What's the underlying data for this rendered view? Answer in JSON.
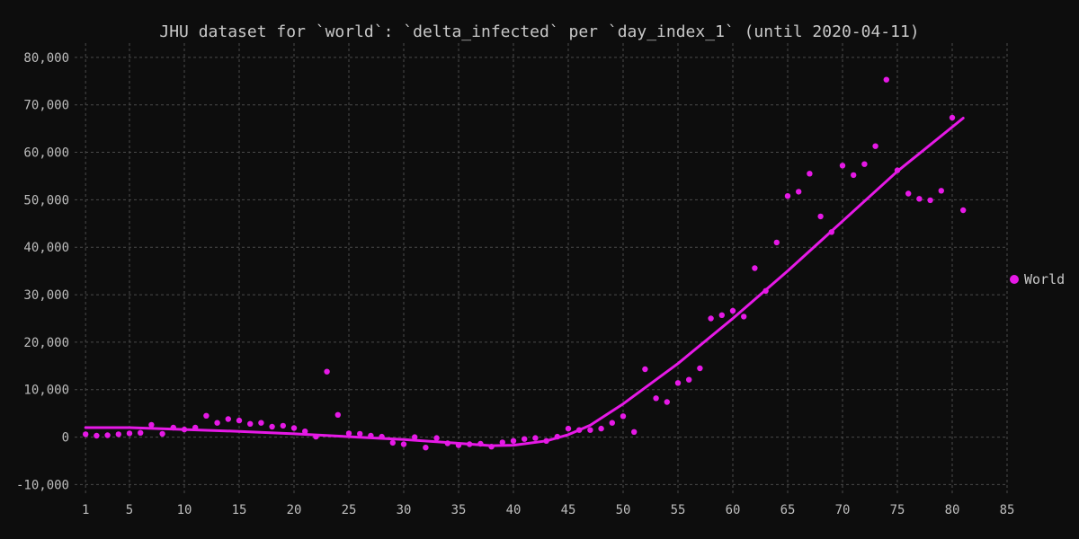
{
  "chart_data": {
    "type": "scatter",
    "title": "JHU dataset for `world`: `delta_infected` per `day_index_1` (until 2020-04-11)",
    "xlabel": "",
    "ylabel": "",
    "xlim": [
      0,
      85
    ],
    "ylim": [
      -12000,
      83000
    ],
    "x_ticks": [
      1,
      5,
      10,
      15,
      20,
      25,
      30,
      35,
      40,
      45,
      50,
      55,
      60,
      65,
      70,
      75,
      80,
      85
    ],
    "y_ticks": [
      -10000,
      0,
      10000,
      20000,
      30000,
      40000,
      50000,
      60000,
      70000,
      80000
    ],
    "y_tick_labels": [
      "-10,000",
      "0",
      "10,000",
      "20,000",
      "30,000",
      "40,000",
      "50,000",
      "60,000",
      "70,000",
      "80,000"
    ],
    "grid": true,
    "legend_position": "right",
    "color": "#e619e6",
    "series": [
      {
        "name": "World",
        "points": [
          [
            1,
            600
          ],
          [
            2,
            300
          ],
          [
            3,
            400
          ],
          [
            4,
            600
          ],
          [
            5,
            800
          ],
          [
            6,
            900
          ],
          [
            7,
            2600
          ],
          [
            8,
            700
          ],
          [
            9,
            2000
          ],
          [
            10,
            1600
          ],
          [
            11,
            2000
          ],
          [
            12,
            4500
          ],
          [
            13,
            3000
          ],
          [
            14,
            3800
          ],
          [
            15,
            3500
          ],
          [
            16,
            2800
          ],
          [
            17,
            3000
          ],
          [
            18,
            2200
          ],
          [
            19,
            2400
          ],
          [
            20,
            1900
          ],
          [
            21,
            1200
          ],
          [
            22,
            100
          ],
          [
            23,
            13800
          ],
          [
            24,
            4700
          ],
          [
            25,
            800
          ],
          [
            26,
            700
          ],
          [
            27,
            300
          ],
          [
            28,
            100
          ],
          [
            29,
            -1200
          ],
          [
            30,
            -1500
          ],
          [
            31,
            0
          ],
          [
            32,
            -2200
          ],
          [
            33,
            -200
          ],
          [
            34,
            -1300
          ],
          [
            35,
            -1700
          ],
          [
            36,
            -1500
          ],
          [
            37,
            -1400
          ],
          [
            38,
            -2000
          ],
          [
            39,
            -1100
          ],
          [
            40,
            -800
          ],
          [
            41,
            -400
          ],
          [
            42,
            -200
          ],
          [
            43,
            -800
          ],
          [
            44,
            100
          ],
          [
            45,
            1800
          ],
          [
            46,
            1500
          ],
          [
            47,
            1500
          ],
          [
            48,
            1800
          ],
          [
            49,
            3000
          ],
          [
            50,
            4400
          ],
          [
            51,
            1100
          ],
          [
            52,
            14300
          ],
          [
            53,
            8200
          ],
          [
            54,
            7400
          ],
          [
            55,
            11400
          ],
          [
            56,
            12100
          ],
          [
            57,
            14500
          ],
          [
            58,
            25000
          ],
          [
            59,
            25700
          ],
          [
            60,
            26600
          ],
          [
            61,
            25400
          ],
          [
            62,
            35600
          ],
          [
            63,
            30800
          ],
          [
            64,
            41000
          ],
          [
            65,
            50800
          ],
          [
            66,
            51700
          ],
          [
            67,
            55500
          ],
          [
            68,
            46500
          ],
          [
            69,
            43200
          ],
          [
            70,
            57200
          ],
          [
            71,
            55200
          ],
          [
            72,
            57500
          ],
          [
            73,
            61300
          ],
          [
            74,
            75300
          ],
          [
            75,
            56200
          ],
          [
            76,
            51300
          ],
          [
            77,
            50200
          ],
          [
            78,
            49900
          ],
          [
            79,
            51900
          ],
          [
            80,
            67300
          ],
          [
            81,
            47800
          ]
        ],
        "trend": [
          [
            1,
            2000
          ],
          [
            5,
            2000
          ],
          [
            10,
            1600
          ],
          [
            15,
            1200
          ],
          [
            20,
            700
          ],
          [
            25,
            100
          ],
          [
            30,
            -500
          ],
          [
            35,
            -1300
          ],
          [
            38,
            -1800
          ],
          [
            40,
            -1700
          ],
          [
            43,
            -800
          ],
          [
            45,
            500
          ],
          [
            47,
            2500
          ],
          [
            50,
            7000
          ],
          [
            55,
            15500
          ],
          [
            60,
            25000
          ],
          [
            65,
            35000
          ],
          [
            70,
            45500
          ],
          [
            75,
            56000
          ],
          [
            81,
            67200
          ]
        ]
      }
    ]
  }
}
